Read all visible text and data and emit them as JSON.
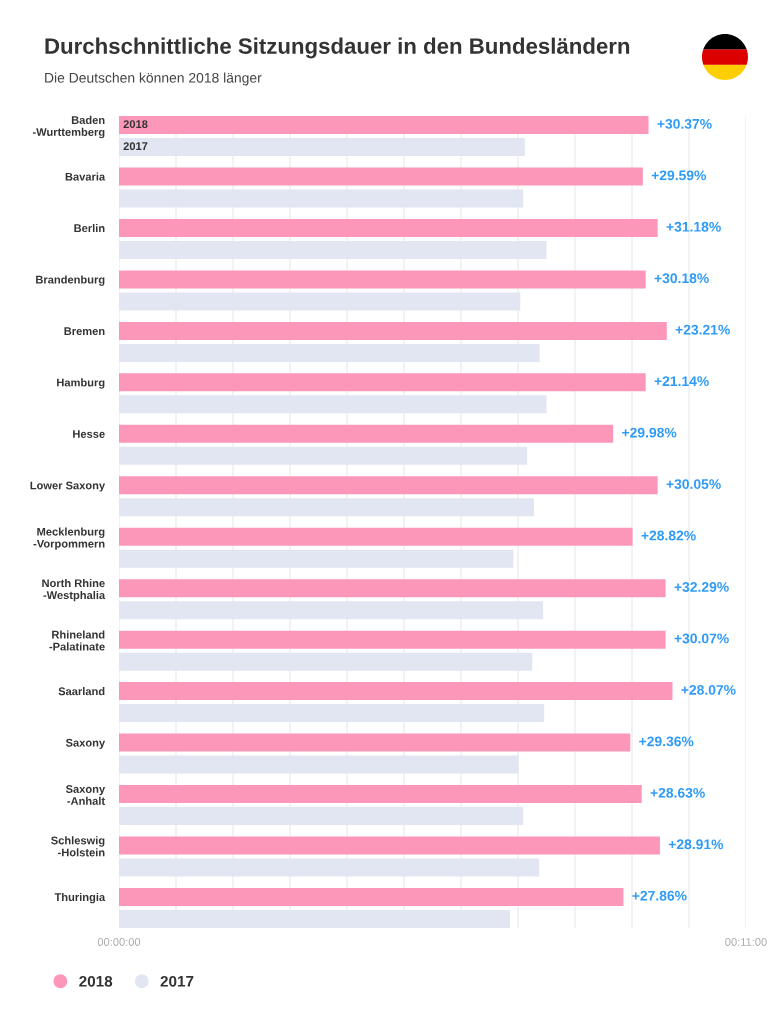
{
  "chart_data": {
    "type": "bar",
    "orientation": "horizontal",
    "title": "Durchschnittliche Sitzungsdauer in den Bundesländern",
    "subtitle": "Die Deutschen können 2018 länger",
    "categories": [
      "Baden\n-Wurttemberg",
      "Bavaria",
      "Berlin",
      "Brandenburg",
      "Bremen",
      "Hamburg",
      "Hesse",
      "Lower Saxony",
      "Mecklenburg\n-Vorpommern",
      "North Rhine\n-Westphalia",
      "Rhineland\n-Palatinate",
      "Saarland",
      "Saxony",
      "Saxony\n-Anhalt",
      "Schleswig\n-Holstein",
      "Thuringia"
    ],
    "series": [
      {
        "name": "2018",
        "color": "#fd97ba",
        "values": [
          9.29,
          9.19,
          9.45,
          9.24,
          9.61,
          9.24,
          8.67,
          9.45,
          9.01,
          9.59,
          9.59,
          9.71,
          8.97,
          9.17,
          9.49,
          8.85
        ]
      },
      {
        "name": "2017",
        "color": "#e2e6f2",
        "values": [
          7.12,
          7.09,
          7.5,
          7.04,
          7.38,
          7.5,
          7.16,
          7.28,
          6.92,
          7.44,
          7.25,
          7.46,
          7.01,
          7.09,
          7.37,
          6.86
        ]
      }
    ],
    "annotations": [
      {
        "text": "+30.37%",
        "x": 9.29,
        "y": "Baden\n-Wurttemberg"
      },
      {
        "text": "+29.59%",
        "x": 9.19,
        "y": "Bavaria"
      },
      {
        "text": "+31.18%",
        "x": 9.45,
        "y": "Berlin"
      },
      {
        "text": "+30.18%",
        "x": 9.24,
        "y": "Brandenburg"
      },
      {
        "text": "+23.21%",
        "x": 9.61,
        "y": "Bremen"
      },
      {
        "text": "+21.14%",
        "x": 9.24,
        "y": "Hamburg"
      },
      {
        "text": "+29.98%",
        "x": 8.67,
        "y": "Hesse"
      },
      {
        "text": "+30.05%",
        "x": 9.45,
        "y": "Lower Saxony"
      },
      {
        "text": "+28.82%",
        "x": 9.01,
        "y": "Mecklenburg\n-Vorpommern"
      },
      {
        "text": "+32.29%",
        "x": 9.59,
        "y": "North Rhine\n-Westphalia"
      },
      {
        "text": "+30.07%",
        "x": 9.59,
        "y": "Rhineland\n-Palatinate"
      },
      {
        "text": "+28.07%",
        "x": 9.71,
        "y": "Saarland"
      },
      {
        "text": "+29.36%",
        "x": 8.97,
        "y": "Saxony"
      },
      {
        "text": "+28.63%",
        "x": 9.17,
        "y": "Saxony\n-Anhalt"
      },
      {
        "text": "+28.91%",
        "x": 9.49,
        "y": "Schleswig\n-Holstein"
      },
      {
        "text": "+27.86%",
        "x": 8.85,
        "y": "Thuringia"
      }
    ],
    "xlim": [
      0,
      11
    ],
    "xticks": [
      {
        "value": 0,
        "label": "00:00:00"
      },
      {
        "value": 1,
        "label": null
      },
      {
        "value": 2,
        "label": null
      },
      {
        "value": 3,
        "label": null
      },
      {
        "value": 4,
        "label": null
      },
      {
        "value": 5,
        "label": null
      },
      {
        "value": 6,
        "label": null
      },
      {
        "value": 7,
        "label": null
      },
      {
        "value": 8,
        "label": null
      },
      {
        "value": 9,
        "label": null
      },
      {
        "value": 10,
        "label": null
      },
      {
        "value": 11,
        "label": "00:11:00"
      }
    ],
    "grid": "x",
    "legend": "bottom left"
  }
}
